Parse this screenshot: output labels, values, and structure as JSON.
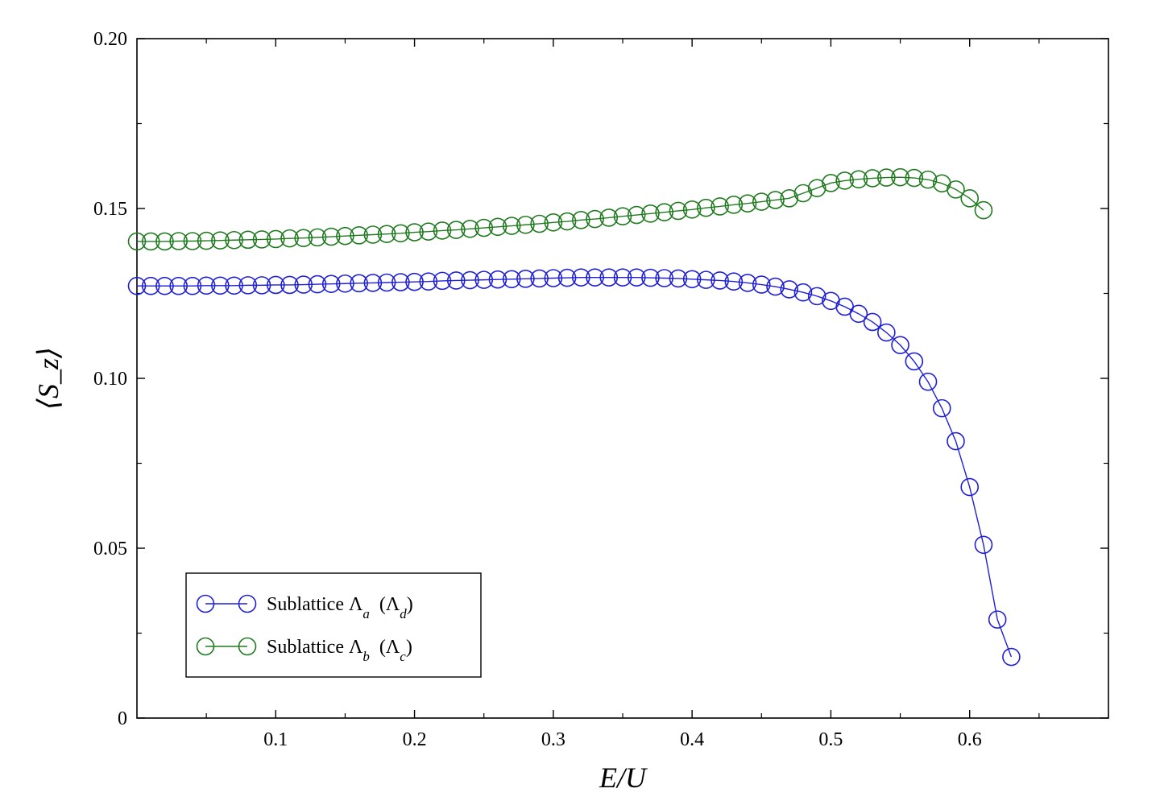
{
  "chart_data": {
    "type": "line",
    "title": "",
    "xlabel": "E/U",
    "ylabel": "⟨S_z⟩",
    "xlim": [
      0.0,
      0.7
    ],
    "ylim": [
      0.0,
      0.2
    ],
    "x_ticks": [
      0.1,
      0.2,
      0.3,
      0.4,
      0.5,
      0.6
    ],
    "x_tick_labels": [
      "0.1",
      "0.2",
      "0.3",
      "0.4",
      "0.5",
      "0.6"
    ],
    "y_ticks": [
      0,
      0.05,
      0.1,
      0.15,
      0.2
    ],
    "y_tick_labels": [
      "0",
      "0.05",
      "0.10",
      "0.15",
      "0.20"
    ],
    "grid": false,
    "legend_position": "bottom-left",
    "series": [
      {
        "name": "Sublattice Λa (Λd)",
        "legend_main": "Sublattice Λ",
        "legend_sub": "a",
        "legend_paren": "Λ",
        "legend_paren_sub": "d",
        "color": "#1f1fd6",
        "x": [
          0.0,
          0.01,
          0.02,
          0.03,
          0.04,
          0.05,
          0.06,
          0.07,
          0.08,
          0.09,
          0.1,
          0.11,
          0.12,
          0.13,
          0.14,
          0.15,
          0.16,
          0.17,
          0.18,
          0.19,
          0.2,
          0.21,
          0.22,
          0.23,
          0.24,
          0.25,
          0.26,
          0.27,
          0.28,
          0.29,
          0.3,
          0.31,
          0.32,
          0.33,
          0.34,
          0.35,
          0.36,
          0.37,
          0.38,
          0.39,
          0.4,
          0.41,
          0.42,
          0.43,
          0.44,
          0.45,
          0.46,
          0.47,
          0.48,
          0.49,
          0.5,
          0.51,
          0.52,
          0.53,
          0.54,
          0.55,
          0.56,
          0.57,
          0.58,
          0.59,
          0.6,
          0.61,
          0.62,
          0.63
        ],
        "y": [
          0.1272,
          0.1272,
          0.1272,
          0.1272,
          0.1272,
          0.1273,
          0.1273,
          0.1273,
          0.1274,
          0.1274,
          0.1275,
          0.1275,
          0.1276,
          0.1277,
          0.1278,
          0.1279,
          0.128,
          0.1281,
          0.1282,
          0.1283,
          0.1284,
          0.1285,
          0.1287,
          0.1288,
          0.1289,
          0.129,
          0.1291,
          0.1292,
          0.1293,
          0.1294,
          0.1295,
          0.1296,
          0.1297,
          0.1297,
          0.1297,
          0.1297,
          0.1297,
          0.1296,
          0.1295,
          0.1294,
          0.1292,
          0.129,
          0.1288,
          0.1285,
          0.1281,
          0.1276,
          0.127,
          0.1262,
          0.1253,
          0.1242,
          0.1228,
          0.1211,
          0.119,
          0.1166,
          0.1135,
          0.1098,
          0.105,
          0.099,
          0.0912,
          0.0815,
          0.068,
          0.051,
          0.029,
          0.018
        ]
      },
      {
        "name": "Sublattice Λb (Λc)",
        "legend_main": "Sublattice Λ",
        "legend_sub": "b",
        "legend_paren": "Λ",
        "legend_paren_sub": "c",
        "color": "#1f7a1f",
        "x": [
          0.0,
          0.01,
          0.02,
          0.03,
          0.04,
          0.05,
          0.06,
          0.07,
          0.08,
          0.09,
          0.1,
          0.11,
          0.12,
          0.13,
          0.14,
          0.15,
          0.16,
          0.17,
          0.18,
          0.19,
          0.2,
          0.21,
          0.22,
          0.23,
          0.24,
          0.25,
          0.26,
          0.27,
          0.28,
          0.29,
          0.3,
          0.31,
          0.32,
          0.33,
          0.34,
          0.35,
          0.36,
          0.37,
          0.38,
          0.39,
          0.4,
          0.41,
          0.42,
          0.43,
          0.44,
          0.45,
          0.46,
          0.47,
          0.48,
          0.49,
          0.5,
          0.51,
          0.52,
          0.53,
          0.54,
          0.55,
          0.56,
          0.57,
          0.58,
          0.59,
          0.6,
          0.61
        ],
        "y": [
          0.1403,
          0.1403,
          0.1403,
          0.1404,
          0.1404,
          0.1405,
          0.1406,
          0.1407,
          0.1408,
          0.1409,
          0.141,
          0.1412,
          0.1413,
          0.1415,
          0.1417,
          0.1419,
          0.1421,
          0.1423,
          0.1425,
          0.1427,
          0.143,
          0.1432,
          0.1435,
          0.1437,
          0.144,
          0.1443,
          0.1446,
          0.1449,
          0.1452,
          0.1455,
          0.1459,
          0.1462,
          0.1466,
          0.1469,
          0.1473,
          0.1477,
          0.1481,
          0.1485,
          0.1489,
          0.1493,
          0.1497,
          0.1502,
          0.1506,
          0.1511,
          0.1515,
          0.152,
          0.1525,
          0.153,
          0.1545,
          0.156,
          0.1575,
          0.1582,
          0.1586,
          0.1589,
          0.1591,
          0.1592,
          0.159,
          0.1585,
          0.1574,
          0.1556,
          0.153,
          0.1495
        ]
      }
    ]
  }
}
